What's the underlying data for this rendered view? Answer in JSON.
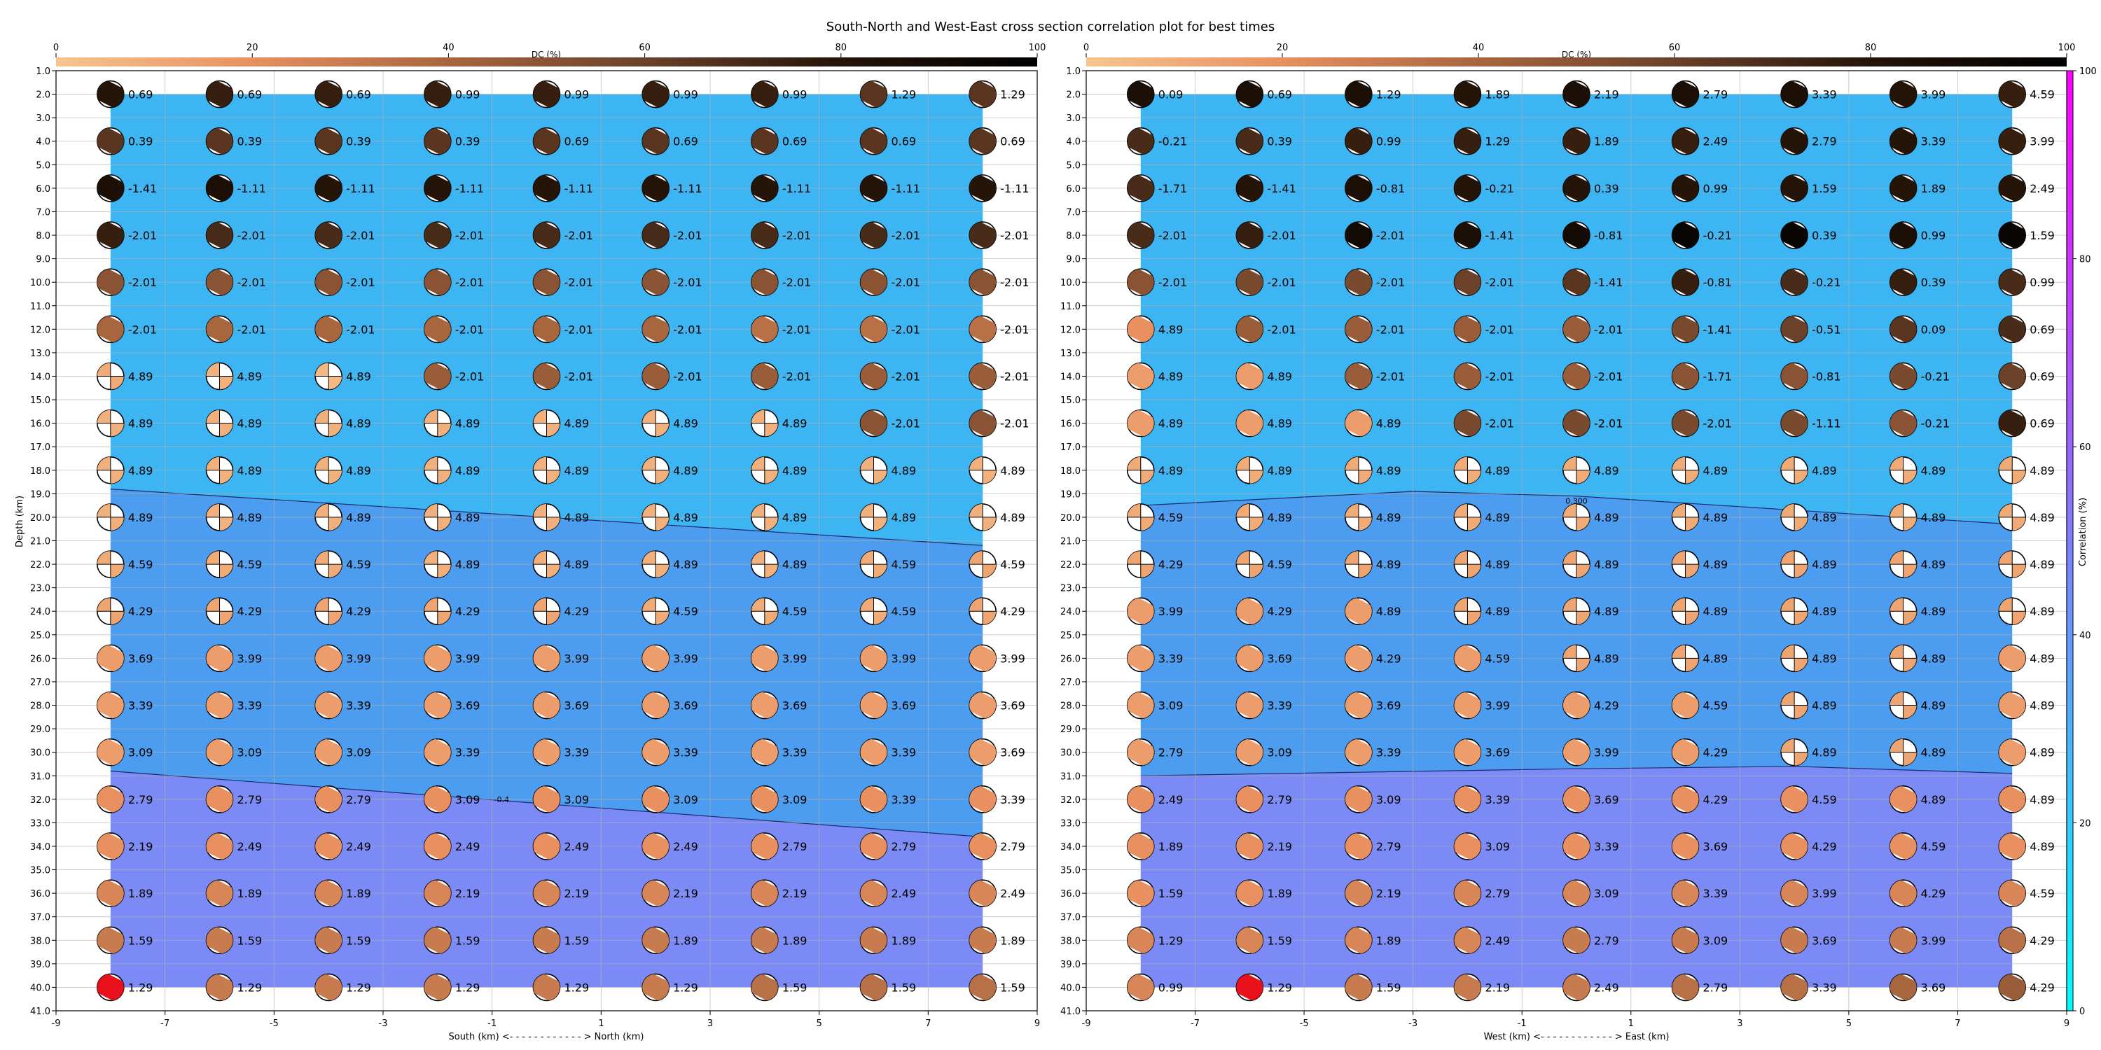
{
  "title": "South-North and West-East cross section correlation plot for best times",
  "dc_colorbar": {
    "label": "DC (%)",
    "ticks": [
      "0",
      "20",
      "40",
      "60",
      "80",
      "100"
    ],
    "colors": [
      "#f7c58f",
      "#e8905f",
      "#a8663f",
      "#6b4129",
      "#251408",
      "#000000"
    ]
  },
  "corr_colorbar": {
    "label": "Correlation (%)",
    "ticks": [
      "0",
      "20",
      "40",
      "60",
      "80",
      "100"
    ],
    "colors": [
      "#00ffff",
      "#ff00ff"
    ]
  },
  "depth_axis": {
    "label": "Depth (km)",
    "ticks": [
      "1.0",
      "2.0",
      "3.0",
      "4.0",
      "5.0",
      "6.0",
      "7.0",
      "8.0",
      "9.0",
      "10.0",
      "11.0",
      "12.0",
      "13.0",
      "14.0",
      "15.0",
      "16.0",
      "17.0",
      "18.0",
      "19.0",
      "20.0",
      "21.0",
      "22.0",
      "23.0",
      "24.0",
      "25.0",
      "26.0",
      "27.0",
      "28.0",
      "29.0",
      "30.0",
      "31.0",
      "32.0",
      "33.0",
      "34.0",
      "35.0",
      "36.0",
      "37.0",
      "38.0",
      "39.0",
      "40.0",
      "41.0"
    ]
  },
  "chart_data": [
    {
      "type": "heatmap",
      "xlabel": "South (km) <- - - - - - - - - - - - > North (km)",
      "ylabel": "Depth (km)",
      "xlim": [
        -9,
        9
      ],
      "ylim": [
        41,
        1
      ],
      "x_ticks": [
        "-9",
        "-7",
        "-5",
        "-3",
        "-1",
        "1",
        "3",
        "5",
        "7",
        "9"
      ],
      "x": [
        -8,
        -6,
        -4,
        -2,
        0,
        2,
        4,
        6,
        8
      ],
      "depths": [
        2,
        4,
        6,
        8,
        10,
        12,
        14,
        16,
        18,
        20,
        22,
        24,
        26,
        28,
        30,
        32,
        34,
        36,
        38,
        40
      ],
      "correlation_zones": [
        {
          "name": "upper",
          "color": "#3db5f2",
          "boundary_depths_at_x": [
            [
              -8,
              18.8
            ],
            [
              0,
              20.0
            ],
            [
              8,
              21.2
            ]
          ]
        },
        {
          "name": "middle",
          "color": "#4c9cf0",
          "boundary_depths_at_x": [
            [
              -8,
              30.8
            ],
            [
              0,
              32.2
            ],
            [
              8,
              33.6
            ]
          ]
        },
        {
          "name": "lower",
          "color": "#7b8af5"
        }
      ],
      "contour_labels": [
        {
          "text": "0.4",
          "x": -0.8,
          "depth": 32.0
        }
      ],
      "best_solution": {
        "x": -8,
        "depth": 40
      },
      "time_labels": [
        [
          "0.69",
          "0.69",
          "0.69",
          "0.99",
          "0.99",
          "0.99",
          "0.99",
          "1.29",
          "1.29"
        ],
        [
          "0.39",
          "0.39",
          "0.39",
          "0.39",
          "0.69",
          "0.69",
          "0.69",
          "0.69",
          "0.69"
        ],
        [
          "-1.41",
          "-1.11",
          "-1.11",
          "-1.11",
          "-1.11",
          "-1.11",
          "-1.11",
          "-1.11",
          "-1.11"
        ],
        [
          "-2.01",
          "-2.01",
          "-2.01",
          "-2.01",
          "-2.01",
          "-2.01",
          "-2.01",
          "-2.01",
          "-2.01"
        ],
        [
          "-2.01",
          "-2.01",
          "-2.01",
          "-2.01",
          "-2.01",
          "-2.01",
          "-2.01",
          "-2.01",
          "-2.01"
        ],
        [
          "-2.01",
          "-2.01",
          "-2.01",
          "-2.01",
          "-2.01",
          "-2.01",
          "-2.01",
          "-2.01",
          "-2.01"
        ],
        [
          "4.89",
          "4.89",
          "4.89",
          "-2.01",
          "-2.01",
          "-2.01",
          "-2.01",
          "-2.01",
          "-2.01"
        ],
        [
          "4.89",
          "4.89",
          "4.89",
          "4.89",
          "4.89",
          "4.89",
          "4.89",
          "-2.01",
          "-2.01"
        ],
        [
          "4.89",
          "4.89",
          "4.89",
          "4.89",
          "4.89",
          "4.89",
          "4.89",
          "4.89",
          "4.89"
        ],
        [
          "4.89",
          "4.89",
          "4.89",
          "4.89",
          "4.89",
          "4.89",
          "4.89",
          "4.89",
          "4.89"
        ],
        [
          "4.59",
          "4.59",
          "4.59",
          "4.89",
          "4.89",
          "4.89",
          "4.89",
          "4.59",
          "4.59"
        ],
        [
          "4.29",
          "4.29",
          "4.29",
          "4.29",
          "4.29",
          "4.59",
          "4.59",
          "4.59",
          "4.29"
        ],
        [
          "3.69",
          "3.99",
          "3.99",
          "3.99",
          "3.99",
          "3.99",
          "3.99",
          "3.99",
          "3.99"
        ],
        [
          "3.39",
          "3.39",
          "3.39",
          "3.69",
          "3.69",
          "3.69",
          "3.69",
          "3.69",
          "3.69"
        ],
        [
          "3.09",
          "3.09",
          "3.09",
          "3.39",
          "3.39",
          "3.39",
          "3.39",
          "3.39",
          "3.69"
        ],
        [
          "2.79",
          "2.79",
          "2.79",
          "3.09",
          "3.09",
          "3.09",
          "3.09",
          "3.39",
          "3.39"
        ],
        [
          "2.19",
          "2.49",
          "2.49",
          "2.49",
          "2.49",
          "2.49",
          "2.79",
          "2.79",
          "2.79"
        ],
        [
          "1.89",
          "1.89",
          "1.89",
          "2.19",
          "2.19",
          "2.19",
          "2.19",
          "2.49",
          "2.49"
        ],
        [
          "1.59",
          "1.59",
          "1.59",
          "1.59",
          "1.59",
          "1.89",
          "1.89",
          "1.89",
          "1.89"
        ],
        [
          "1.29",
          "1.29",
          "1.29",
          "1.29",
          "1.29",
          "1.29",
          "1.59",
          "1.59",
          "1.59"
        ]
      ],
      "dc_percent": [
        [
          80,
          75,
          75,
          75,
          75,
          75,
          75,
          65,
          65
        ],
        [
          65,
          65,
          65,
          65,
          65,
          65,
          65,
          65,
          65
        ],
        [
          85,
          85,
          80,
          80,
          80,
          80,
          80,
          80,
          80
        ],
        [
          75,
          70,
          70,
          70,
          70,
          70,
          70,
          70,
          70
        ],
        [
          50,
          50,
          50,
          50,
          50,
          50,
          50,
          50,
          50
        ],
        [
          40,
          40,
          40,
          40,
          40,
          40,
          35,
          35,
          35
        ],
        [
          10,
          8,
          5,
          45,
          45,
          45,
          45,
          45,
          45
        ],
        [
          8,
          8,
          8,
          8,
          8,
          8,
          8,
          50,
          50
        ],
        [
          8,
          8,
          8,
          8,
          8,
          8,
          8,
          8,
          8
        ],
        [
          8,
          8,
          8,
          8,
          8,
          8,
          8,
          8,
          8
        ],
        [
          10,
          10,
          10,
          8,
          8,
          8,
          8,
          10,
          12
        ],
        [
          12,
          12,
          12,
          12,
          12,
          10,
          10,
          10,
          12
        ],
        [
          15,
          15,
          15,
          15,
          15,
          15,
          15,
          15,
          15
        ],
        [
          15,
          15,
          15,
          15,
          15,
          15,
          15,
          15,
          15
        ],
        [
          15,
          15,
          15,
          15,
          15,
          15,
          15,
          15,
          15
        ],
        [
          20,
          20,
          20,
          20,
          20,
          20,
          20,
          20,
          20
        ],
        [
          20,
          20,
          20,
          20,
          20,
          20,
          20,
          20,
          20
        ],
        [
          25,
          25,
          25,
          25,
          25,
          25,
          25,
          25,
          25
        ],
        [
          30,
          30,
          30,
          30,
          30,
          30,
          30,
          30,
          30
        ],
        [
          30,
          30,
          30,
          30,
          30,
          30,
          35,
          35,
          35
        ]
      ]
    },
    {
      "type": "heatmap",
      "xlabel": "West (km) <- - - - - - - - - - - - > East (km)",
      "ylabel": "Depth (km)",
      "xlim": [
        -9,
        9
      ],
      "ylim": [
        41,
        1
      ],
      "x_ticks": [
        "-9",
        "-7",
        "-5",
        "-3",
        "-1",
        "1",
        "3",
        "5",
        "7",
        "9"
      ],
      "x": [
        -8,
        -6,
        -4,
        -2,
        0,
        2,
        4,
        6,
        8
      ],
      "depths": [
        2,
        4,
        6,
        8,
        10,
        12,
        14,
        16,
        18,
        20,
        22,
        24,
        26,
        28,
        30,
        32,
        34,
        36,
        38,
        40
      ],
      "correlation_zones": [
        {
          "name": "upper",
          "color": "#3db5f2",
          "boundary_depths_at_x": [
            [
              -8,
              19.5
            ],
            [
              -3,
              18.9
            ],
            [
              0,
              19.1
            ],
            [
              8,
              20.3
            ]
          ]
        },
        {
          "name": "middle",
          "color": "#4c9cf0",
          "boundary_depths_at_x": [
            [
              -8,
              31.0
            ],
            [
              0,
              30.7
            ],
            [
              4,
              30.6
            ],
            [
              8,
              30.9
            ]
          ]
        },
        {
          "name": "lower",
          "color": "#7b8af5"
        }
      ],
      "contour_labels": [
        {
          "text": "0.300",
          "x": 0.0,
          "depth": 19.3
        }
      ],
      "best_solution": {
        "x": -6,
        "depth": 40
      },
      "time_labels": [
        [
          "0.09",
          "0.69",
          "1.29",
          "1.89",
          "2.19",
          "2.79",
          "3.39",
          "3.99",
          "4.59"
        ],
        [
          "-0.21",
          "0.39",
          "0.99",
          "1.29",
          "1.89",
          "2.49",
          "2.79",
          "3.39",
          "3.99"
        ],
        [
          "-1.71",
          "-1.41",
          "-0.81",
          "-0.21",
          "0.39",
          "0.99",
          "1.59",
          "1.89",
          "2.49"
        ],
        [
          "-2.01",
          "-2.01",
          "-2.01",
          "-1.41",
          "-0.81",
          "-0.21",
          "0.39",
          "0.99",
          "1.59"
        ],
        [
          "-2.01",
          "-2.01",
          "-2.01",
          "-2.01",
          "-1.41",
          "-0.81",
          "-0.21",
          "0.39",
          "0.99"
        ],
        [
          "4.89",
          "-2.01",
          "-2.01",
          "-2.01",
          "-2.01",
          "-1.41",
          "-0.51",
          "0.09",
          "0.69"
        ],
        [
          "4.89",
          "4.89",
          "-2.01",
          "-2.01",
          "-2.01",
          "-1.71",
          "-0.81",
          "-0.21",
          "0.69"
        ],
        [
          "4.89",
          "4.89",
          "4.89",
          "-2.01",
          "-2.01",
          "-2.01",
          "-1.11",
          "-0.21",
          "0.69"
        ],
        [
          "4.89",
          "4.89",
          "4.89",
          "4.89",
          "4.89",
          "4.89",
          "4.89",
          "4.89",
          "4.89"
        ],
        [
          "4.59",
          "4.89",
          "4.89",
          "4.89",
          "4.89",
          "4.89",
          "4.89",
          "4.89",
          "4.89"
        ],
        [
          "4.29",
          "4.59",
          "4.89",
          "4.89",
          "4.89",
          "4.89",
          "4.89",
          "4.89",
          "4.89"
        ],
        [
          "3.99",
          "4.29",
          "4.89",
          "4.89",
          "4.89",
          "4.89",
          "4.89",
          "4.89",
          "4.89"
        ],
        [
          "3.39",
          "3.69",
          "4.29",
          "4.59",
          "4.89",
          "4.89",
          "4.89",
          "4.89",
          "4.89"
        ],
        [
          "3.09",
          "3.39",
          "3.69",
          "3.99",
          "4.29",
          "4.59",
          "4.89",
          "4.89",
          "4.89"
        ],
        [
          "2.79",
          "3.09",
          "3.39",
          "3.69",
          "3.99",
          "4.29",
          "4.89",
          "4.89",
          "4.89"
        ],
        [
          "2.49",
          "2.79",
          "3.09",
          "3.39",
          "3.69",
          "4.29",
          "4.59",
          "4.89",
          "4.89"
        ],
        [
          "1.89",
          "2.19",
          "2.79",
          "3.09",
          "3.39",
          "3.69",
          "4.29",
          "4.59",
          "4.89"
        ],
        [
          "1.59",
          "1.89",
          "2.19",
          "2.79",
          "3.09",
          "3.39",
          "3.99",
          "4.29",
          "4.59"
        ],
        [
          "1.29",
          "1.59",
          "1.89",
          "2.49",
          "2.79",
          "3.09",
          "3.69",
          "3.99",
          "4.29"
        ],
        [
          "0.99",
          "1.29",
          "1.59",
          "2.19",
          "2.49",
          "2.79",
          "3.39",
          "3.69",
          "4.29"
        ]
      ],
      "dc_percent": [
        [
          85,
          85,
          85,
          80,
          85,
          85,
          85,
          80,
          75
        ],
        [
          70,
          70,
          75,
          75,
          75,
          75,
          80,
          80,
          75
        ],
        [
          70,
          80,
          85,
          80,
          80,
          80,
          80,
          80,
          80
        ],
        [
          70,
          75,
          90,
          85,
          90,
          95,
          95,
          85,
          95
        ],
        [
          50,
          55,
          55,
          60,
          65,
          75,
          70,
          75,
          70
        ],
        [
          20,
          45,
          45,
          45,
          45,
          55,
          60,
          65,
          70
        ],
        [
          15,
          15,
          45,
          45,
          45,
          50,
          50,
          55,
          60
        ],
        [
          15,
          15,
          15,
          55,
          55,
          55,
          55,
          50,
          75
        ],
        [
          10,
          10,
          10,
          10,
          10,
          10,
          10,
          10,
          10
        ],
        [
          10,
          10,
          10,
          10,
          10,
          10,
          10,
          10,
          10
        ],
        [
          12,
          12,
          12,
          12,
          12,
          12,
          12,
          12,
          12
        ],
        [
          15,
          15,
          15,
          12,
          12,
          12,
          12,
          12,
          12
        ],
        [
          15,
          15,
          15,
          15,
          12,
          12,
          12,
          12,
          15
        ],
        [
          15,
          15,
          15,
          15,
          15,
          15,
          12,
          12,
          15
        ],
        [
          15,
          15,
          15,
          15,
          15,
          15,
          12,
          12,
          15
        ],
        [
          20,
          20,
          20,
          20,
          20,
          20,
          20,
          20,
          20
        ],
        [
          20,
          20,
          20,
          20,
          20,
          20,
          20,
          20,
          20
        ],
        [
          20,
          20,
          25,
          25,
          25,
          25,
          25,
          25,
          25
        ],
        [
          25,
          25,
          25,
          25,
          30,
          30,
          30,
          30,
          35
        ],
        [
          25,
          25,
          30,
          30,
          30,
          35,
          35,
          40,
          45
        ]
      ]
    }
  ]
}
